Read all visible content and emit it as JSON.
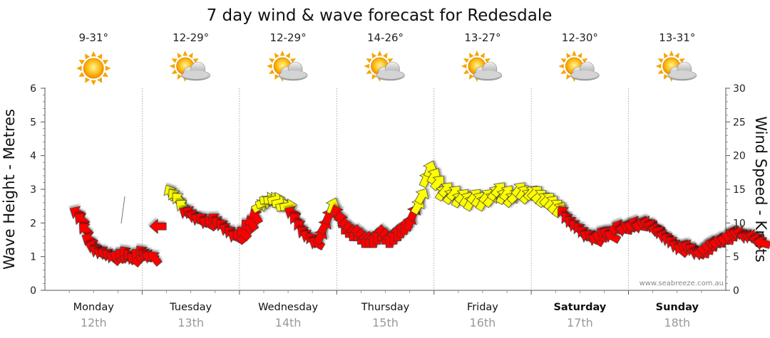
{
  "chart_data": {
    "type": "line",
    "title": "7 day wind & wave forecast for Redesdale",
    "ylabel_left": "Wave Height - Metres",
    "ylabel_right": "Wind Speed - Knots",
    "ylim_left": [
      0,
      6
    ],
    "ylim_right": [
      0,
      30
    ],
    "yticks_left": [
      0,
      1,
      2,
      3,
      4,
      5,
      6
    ],
    "yticks_right": [
      0,
      5,
      10,
      15,
      20,
      25,
      30
    ],
    "credit": "www.seabreeze.com.au",
    "days": [
      {
        "name": "Monday",
        "date": "12th",
        "temp": "9-31°",
        "icon": "sun-icon",
        "bold": false
      },
      {
        "name": "Tuesday",
        "date": "13th",
        "temp": "12-29°",
        "icon": "partly-cloudy-icon",
        "bold": false
      },
      {
        "name": "Wednesday",
        "date": "14th",
        "temp": "12-29°",
        "icon": "partly-cloudy-icon",
        "bold": false
      },
      {
        "name": "Thursday",
        "date": "15th",
        "temp": "14-26°",
        "icon": "partly-cloudy-icon",
        "bold": false
      },
      {
        "name": "Friday",
        "date": "16th",
        "temp": "13-27°",
        "icon": "partly-cloudy-icon",
        "bold": false
      },
      {
        "name": "Saturday",
        "date": "17th",
        "temp": "12-30°",
        "icon": "partly-cloudy-icon",
        "bold": true
      },
      {
        "name": "Sunday",
        "date": "18th",
        "temp": "13-31°",
        "icon": "partly-cloudy-icon",
        "bold": true
      }
    ],
    "colors": {
      "light_wind": "#ffff00",
      "strong_wind": "#ff0000",
      "outline": "#333333",
      "grid": "#999999"
    },
    "series": [
      {
        "name": "Wind Speed - Knots",
        "axis": "right",
        "x_unit": "hours from Monday 00:00",
        "points": [
          {
            "t": 8,
            "kn": 11.5,
            "dir": 300
          },
          {
            "t": 9,
            "kn": 10.5,
            "dir": 310
          },
          {
            "t": 10,
            "kn": 9.0,
            "dir": 315
          },
          {
            "t": 11,
            "kn": 7.5,
            "dir": 300
          },
          {
            "t": 12,
            "kn": 6.5,
            "dir": 290
          },
          {
            "t": 13,
            "kn": 5.8,
            "dir": 300
          },
          {
            "t": 14,
            "kn": 5.5,
            "dir": 300
          },
          {
            "t": 15,
            "kn": 5.5,
            "dir": 290
          },
          {
            "t": 16,
            "kn": 5.2,
            "dir": 300
          },
          {
            "t": 17,
            "kn": 4.8,
            "dir": 310
          },
          {
            "t": 18,
            "kn": 5.0,
            "dir": 300
          },
          {
            "t": 19,
            "kn": 5.2,
            "dir": 315
          },
          {
            "t": 20,
            "kn": 5.5,
            "dir": 320
          },
          {
            "t": 21,
            "kn": 5.0,
            "dir": 320
          },
          {
            "t": 22,
            "kn": 4.6,
            "dir": 310
          },
          {
            "t": 23,
            "kn": 5.2,
            "dir": 315
          },
          {
            "t": 24,
            "kn": 5.6,
            "dir": 320
          },
          {
            "t": 25,
            "kn": 5.2,
            "dir": 300
          },
          {
            "t": 26,
            "kn": 5.0,
            "dir": 290
          },
          {
            "t": 27,
            "kn": 4.8,
            "dir": 320
          },
          {
            "t": 28,
            "kn": 9.5,
            "dir": 270
          },
          {
            "t": 31,
            "kn": 14.5,
            "dir": 330
          },
          {
            "t": 32,
            "kn": 14.0,
            "dir": 320
          },
          {
            "t": 33,
            "kn": 13.5,
            "dir": 315
          },
          {
            "t": 34,
            "kn": 12.5,
            "dir": 310
          },
          {
            "t": 35,
            "kn": 11.5,
            "dir": 300
          },
          {
            "t": 36,
            "kn": 11.5,
            "dir": 300
          },
          {
            "t": 37,
            "kn": 11.0,
            "dir": 290
          },
          {
            "t": 38,
            "kn": 10.5,
            "dir": 300
          },
          {
            "t": 39,
            "kn": 10.5,
            "dir": 315
          },
          {
            "t": 40,
            "kn": 10.0,
            "dir": 300
          },
          {
            "t": 41,
            "kn": 10.0,
            "dir": 320
          },
          {
            "t": 42,
            "kn": 10.5,
            "dir": 310
          },
          {
            "t": 43,
            "kn": 10.0,
            "dir": 300
          },
          {
            "t": 44,
            "kn": 9.5,
            "dir": 315
          },
          {
            "t": 45,
            "kn": 9.0,
            "dir": 300
          },
          {
            "t": 46,
            "kn": 8.5,
            "dir": 310
          },
          {
            "t": 47,
            "kn": 8.0,
            "dir": 300
          },
          {
            "t": 48,
            "kn": 8.0,
            "dir": 320
          },
          {
            "t": 49,
            "kn": 8.5,
            "dir": 315
          },
          {
            "t": 50,
            "kn": 9.5,
            "dir": 320
          },
          {
            "t": 51,
            "kn": 10.0,
            "dir": 330
          },
          {
            "t": 52,
            "kn": 11.0,
            "dir": 330
          },
          {
            "t": 53,
            "kn": 12.5,
            "dir": 60
          },
          {
            "t": 54,
            "kn": 13.0,
            "dir": 70
          },
          {
            "t": 55,
            "kn": 13.5,
            "dir": 80
          },
          {
            "t": 56,
            "kn": 13.5,
            "dir": 80
          },
          {
            "t": 57,
            "kn": 13.5,
            "dir": 75
          },
          {
            "t": 58,
            "kn": 13.0,
            "dir": 80
          },
          {
            "t": 59,
            "kn": 12.5,
            "dir": 75
          },
          {
            "t": 60,
            "kn": 12.5,
            "dir": 80
          },
          {
            "t": 61,
            "kn": 11.5,
            "dir": 300
          },
          {
            "t": 62,
            "kn": 10.5,
            "dir": 315
          },
          {
            "t": 63,
            "kn": 9.5,
            "dir": 320
          },
          {
            "t": 64,
            "kn": 8.5,
            "dir": 310
          },
          {
            "t": 65,
            "kn": 8.0,
            "dir": 300
          },
          {
            "t": 66,
            "kn": 7.5,
            "dir": 320
          },
          {
            "t": 67,
            "kn": 7.0,
            "dir": 300
          },
          {
            "t": 68,
            "kn": 8.0,
            "dir": 30
          },
          {
            "t": 69,
            "kn": 9.5,
            "dir": 30
          },
          {
            "t": 70,
            "kn": 11.0,
            "dir": 25
          },
          {
            "t": 71,
            "kn": 12.5,
            "dir": 20
          },
          {
            "t": 72,
            "kn": 11.5,
            "dir": 340
          },
          {
            "t": 73,
            "kn": 10.5,
            "dir": 350
          },
          {
            "t": 74,
            "kn": 9.5,
            "dir": 0
          },
          {
            "t": 75,
            "kn": 9.0,
            "dir": 0
          },
          {
            "t": 76,
            "kn": 8.5,
            "dir": 0
          },
          {
            "t": 77,
            "kn": 8.5,
            "dir": 0
          },
          {
            "t": 78,
            "kn": 8.0,
            "dir": 0
          },
          {
            "t": 79,
            "kn": 7.5,
            "dir": 0
          },
          {
            "t": 80,
            "kn": 7.5,
            "dir": 0
          },
          {
            "t": 81,
            "kn": 7.5,
            "dir": 0
          },
          {
            "t": 82,
            "kn": 8.0,
            "dir": 0
          },
          {
            "t": 83,
            "kn": 8.5,
            "dir": 0
          },
          {
            "t": 84,
            "kn": 8.0,
            "dir": 0
          },
          {
            "t": 85,
            "kn": 7.5,
            "dir": 0
          },
          {
            "t": 86,
            "kn": 8.0,
            "dir": 0
          },
          {
            "t": 87,
            "kn": 8.5,
            "dir": 0
          },
          {
            "t": 88,
            "kn": 9.0,
            "dir": 10
          },
          {
            "t": 89,
            "kn": 9.5,
            "dir": 15
          },
          {
            "t": 90,
            "kn": 10.0,
            "dir": 20
          },
          {
            "t": 91,
            "kn": 11.5,
            "dir": 25
          },
          {
            "t": 92,
            "kn": 12.5,
            "dir": 30
          },
          {
            "t": 93,
            "kn": 14.0,
            "dir": 30
          },
          {
            "t": 94,
            "kn": 16.5,
            "dir": 25
          },
          {
            "t": 95,
            "kn": 18.0,
            "dir": 20
          },
          {
            "t": 96,
            "kn": 17.0,
            "dir": 30
          },
          {
            "t": 97,
            "kn": 16.0,
            "dir": 40
          },
          {
            "t": 98,
            "kn": 14.5,
            "dir": 30
          },
          {
            "t": 99,
            "kn": 15.0,
            "dir": 40
          },
          {
            "t": 100,
            "kn": 14.0,
            "dir": 35
          },
          {
            "t": 101,
            "kn": 14.5,
            "dir": 40
          },
          {
            "t": 102,
            "kn": 13.5,
            "dir": 30
          },
          {
            "t": 103,
            "kn": 14.0,
            "dir": 40
          },
          {
            "t": 104,
            "kn": 13.5,
            "dir": 35
          },
          {
            "t": 105,
            "kn": 13.0,
            "dir": 30
          },
          {
            "t": 106,
            "kn": 14.0,
            "dir": 40
          },
          {
            "t": 107,
            "kn": 13.5,
            "dir": 35
          },
          {
            "t": 108,
            "kn": 13.0,
            "dir": 30
          },
          {
            "t": 109,
            "kn": 14.0,
            "dir": 40
          },
          {
            "t": 110,
            "kn": 13.5,
            "dir": 40
          },
          {
            "t": 111,
            "kn": 14.5,
            "dir": 35
          },
          {
            "t": 112,
            "kn": 15.0,
            "dir": 40
          },
          {
            "t": 113,
            "kn": 14.0,
            "dir": 30
          },
          {
            "t": 114,
            "kn": 14.5,
            "dir": 35
          },
          {
            "t": 115,
            "kn": 13.5,
            "dir": 40
          },
          {
            "t": 116,
            "kn": 14.0,
            "dir": 45
          },
          {
            "t": 117,
            "kn": 15.0,
            "dir": 40
          },
          {
            "t": 118,
            "kn": 14.5,
            "dir": 35
          },
          {
            "t": 119,
            "kn": 14.0,
            "dir": 40
          },
          {
            "t": 120,
            "kn": 14.5,
            "dir": 40
          },
          {
            "t": 121,
            "kn": 14.5,
            "dir": 45
          },
          {
            "t": 122,
            "kn": 14.0,
            "dir": 50
          },
          {
            "t": 123,
            "kn": 13.5,
            "dir": 40
          },
          {
            "t": 124,
            "kn": 13.5,
            "dir": 45
          },
          {
            "t": 125,
            "kn": 13.0,
            "dir": 40
          },
          {
            "t": 126,
            "kn": 12.5,
            "dir": 45
          },
          {
            "t": 127,
            "kn": 12.0,
            "dir": 35
          },
          {
            "t": 128,
            "kn": 11.5,
            "dir": 320
          },
          {
            "t": 129,
            "kn": 10.5,
            "dir": 320
          },
          {
            "t": 130,
            "kn": 10.0,
            "dir": 315
          },
          {
            "t": 131,
            "kn": 9.5,
            "dir": 310
          },
          {
            "t": 132,
            "kn": 9.0,
            "dir": 320
          },
          {
            "t": 133,
            "kn": 8.5,
            "dir": 315
          },
          {
            "t": 134,
            "kn": 8.0,
            "dir": 300
          },
          {
            "t": 135,
            "kn": 8.0,
            "dir": 310
          },
          {
            "t": 136,
            "kn": 7.5,
            "dir": 300
          },
          {
            "t": 137,
            "kn": 8.0,
            "dir": 290
          },
          {
            "t": 138,
            "kn": 8.5,
            "dir": 300
          },
          {
            "t": 139,
            "kn": 8.5,
            "dir": 290
          },
          {
            "t": 140,
            "kn": 8.0,
            "dir": 300
          },
          {
            "t": 141,
            "kn": 9.0,
            "dir": 280
          },
          {
            "t": 142,
            "kn": 9.5,
            "dir": 290
          },
          {
            "t": 143,
            "kn": 9.0,
            "dir": 280
          },
          {
            "t": 144,
            "kn": 9.5,
            "dir": 290
          },
          {
            "t": 145,
            "kn": 9.5,
            "dir": 285
          },
          {
            "t": 146,
            "kn": 10.0,
            "dir": 290
          },
          {
            "t": 147,
            "kn": 9.5,
            "dir": 280
          },
          {
            "t": 148,
            "kn": 10.0,
            "dir": 290
          },
          {
            "t": 149,
            "kn": 10.0,
            "dir": 280
          },
          {
            "t": 150,
            "kn": 9.5,
            "dir": 290
          },
          {
            "t": 151,
            "kn": 9.0,
            "dir": 280
          },
          {
            "t": 152,
            "kn": 8.5,
            "dir": 300
          },
          {
            "t": 153,
            "kn": 8.0,
            "dir": 290
          },
          {
            "t": 154,
            "kn": 7.5,
            "dir": 300
          },
          {
            "t": 155,
            "kn": 7.0,
            "dir": 310
          },
          {
            "t": 156,
            "kn": 6.5,
            "dir": 300
          },
          {
            "t": 157,
            "kn": 6.0,
            "dir": 310
          },
          {
            "t": 158,
            "kn": 6.5,
            "dir": 300
          },
          {
            "t": 159,
            "kn": 6.5,
            "dir": 290
          },
          {
            "t": 160,
            "kn": 6.0,
            "dir": 300
          },
          {
            "t": 161,
            "kn": 5.5,
            "dir": 290
          },
          {
            "t": 162,
            "kn": 5.5,
            "dir": 280
          },
          {
            "t": 163,
            "kn": 6.0,
            "dir": 280
          },
          {
            "t": 164,
            "kn": 6.5,
            "dir": 280
          },
          {
            "t": 165,
            "kn": 7.0,
            "dir": 280
          },
          {
            "t": 166,
            "kn": 7.0,
            "dir": 275
          },
          {
            "t": 167,
            "kn": 7.5,
            "dir": 280
          },
          {
            "t": 168,
            "kn": 7.5,
            "dir": 280
          },
          {
            "t": 169,
            "kn": 8.0,
            "dir": 280
          },
          {
            "t": 170,
            "kn": 8.5,
            "dir": 285
          },
          {
            "t": 171,
            "kn": 8.5,
            "dir": 280
          },
          {
            "t": 172,
            "kn": 8.5,
            "dir": 285
          },
          {
            "t": 173,
            "kn": 8.0,
            "dir": 280
          },
          {
            "t": 174,
            "kn": 8.0,
            "dir": 285
          },
          {
            "t": 175,
            "kn": 8.0,
            "dir": 280
          },
          {
            "t": 176,
            "kn": 7.5,
            "dir": 280
          },
          {
            "t": 177,
            "kn": 7.0,
            "dir": 285
          }
        ]
      }
    ]
  }
}
